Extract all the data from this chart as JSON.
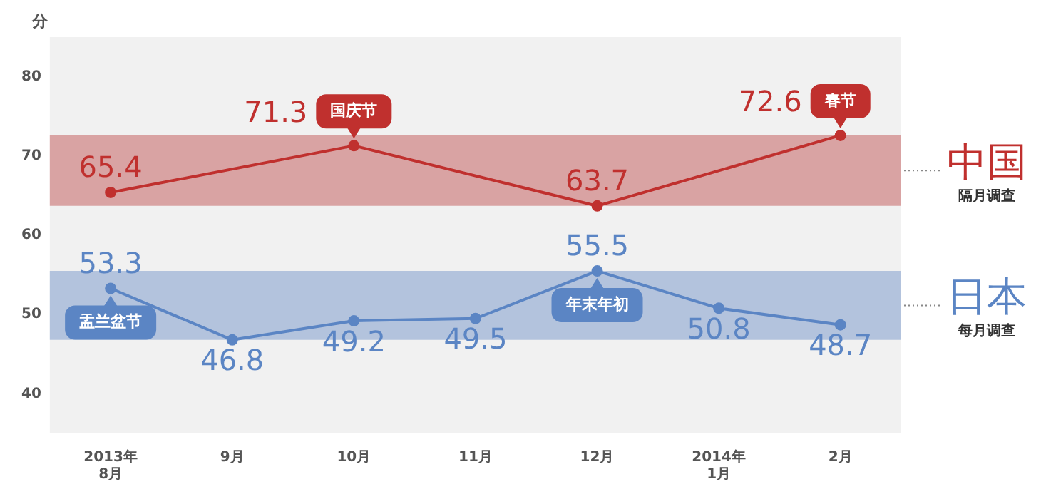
{
  "chart_data": {
    "type": "line",
    "ylabel": "分",
    "categories": [
      "2013年\n8月",
      "9月",
      "10月",
      "11月",
      "12月",
      "2014年\n1月",
      "2月"
    ],
    "series": [
      {
        "name": "中国",
        "color": "#c0302e",
        "values": [
          65.4,
          null,
          71.3,
          null,
          63.7,
          null,
          72.6
        ]
      },
      {
        "name": "日本",
        "color": "#5b85c4",
        "values": [
          53.3,
          46.8,
          49.2,
          49.5,
          55.5,
          50.8,
          48.7
        ]
      }
    ],
    "ylim": [
      35,
      85
    ],
    "yticks": [
      40,
      50,
      60,
      70,
      80
    ],
    "marker": "circle",
    "data_labels": true,
    "legend": false,
    "bands": [
      {
        "axis": "y",
        "from": 63.7,
        "to": 72.6,
        "color": "#d9a3a3"
      },
      {
        "axis": "y",
        "from": 46.8,
        "to": 55.5,
        "color": "#b3c3dd"
      }
    ],
    "annotations": [
      "隔月调查",
      "每月调查",
      {
        "text": "国庆节",
        "x": "10月",
        "y": 71.3
      },
      {
        "text": "春节",
        "x": "2月",
        "y": 72.6
      },
      {
        "text": "盂兰盆节",
        "x": "2013年\n8月",
        "y": 53.3
      },
      {
        "text": "年末年初",
        "x": "12月",
        "y": 55.5
      }
    ]
  }
}
